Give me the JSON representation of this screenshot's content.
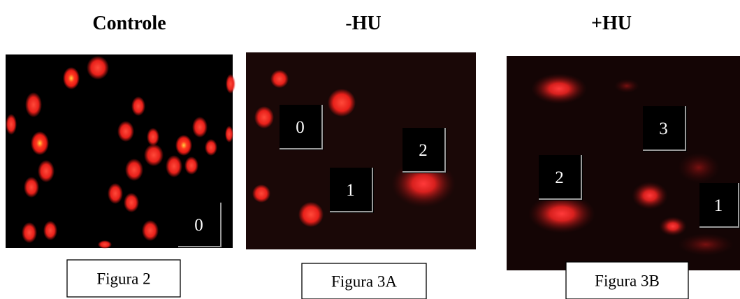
{
  "panels": [
    {
      "title": "Controle",
      "labels": [
        0
      ],
      "caption": "Figura 2"
    },
    {
      "title": "-HU",
      "labels": [
        0,
        1,
        2
      ],
      "caption": "Figura 3A"
    },
    {
      "title": "+HU",
      "labels": [
        3,
        2,
        1
      ],
      "caption": "Figura 3B"
    }
  ]
}
